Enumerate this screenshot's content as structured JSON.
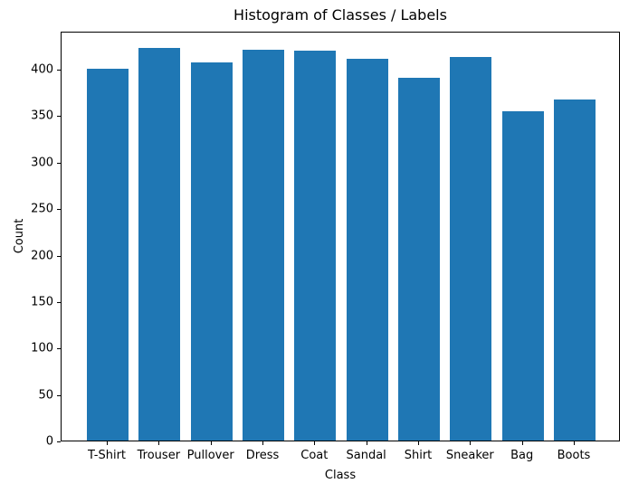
{
  "chart_data": {
    "type": "bar",
    "title": "Histogram of Classes / Labels",
    "xlabel": "Class",
    "ylabel": "Count",
    "categories": [
      "T-Shirt",
      "Trouser",
      "Pullover",
      "Dress",
      "Coat",
      "Sandal",
      "Shirt",
      "Sneaker",
      "Bag",
      "Boots"
    ],
    "values": [
      400,
      423,
      407,
      421,
      420,
      411,
      390,
      413,
      354,
      367
    ],
    "yticks": [
      0,
      50,
      100,
      150,
      200,
      250,
      300,
      350,
      400
    ],
    "ylim": [
      0,
      441
    ],
    "bar_color": "#1f77b4",
    "bar_width_fraction": 0.8,
    "grid": false,
    "legend": "none",
    "background_color": "#ffffff",
    "spine_color": "#000000"
  }
}
